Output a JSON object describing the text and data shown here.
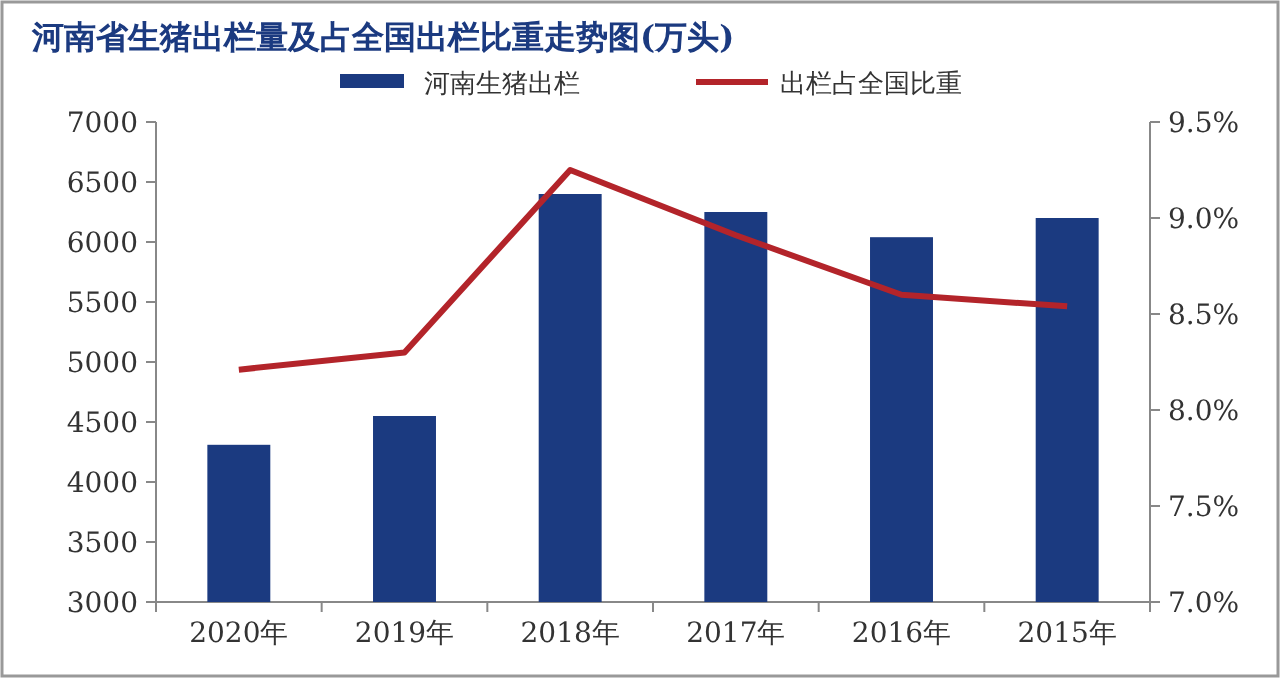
{
  "chart_data": {
    "type": "bar",
    "title": "河南省生猪出栏量及占全国出栏比重走势图(万头)",
    "categories": [
      "2020年",
      "2019年",
      "2018年",
      "2017年",
      "2016年",
      "2015年"
    ],
    "series": [
      {
        "name": "河南生猪出栏",
        "color": "#1b3a80",
        "values": [
          4310,
          4550,
          6400,
          6250,
          6040,
          6200
        ]
      },
      {
        "name": "出栏占全国比重",
        "type": "line",
        "axis": "y2",
        "color": "#b3242a",
        "values": [
          8.21,
          8.3,
          9.25,
          8.91,
          8.6,
          8.54
        ]
      }
    ],
    "ylim": [
      3000,
      7000
    ],
    "yticks": [
      3000,
      3500,
      4000,
      4500,
      5000,
      5500,
      6000,
      6500,
      7000
    ],
    "y2lim": [
      7.0,
      9.5
    ],
    "y2ticks": [
      {
        "value": 7.0,
        "label": "7.0%"
      },
      {
        "value": 7.5,
        "label": "7.5%"
      },
      {
        "value": 8.0,
        "label": "8.0%"
      },
      {
        "value": 8.5,
        "label": "8.5%"
      },
      {
        "value": 9.0,
        "label": "9.0%"
      },
      {
        "value": 9.5,
        "label": "9.5%"
      }
    ],
    "grid": false,
    "legend": "top",
    "marker": "none",
    "line_style": "solid"
  }
}
